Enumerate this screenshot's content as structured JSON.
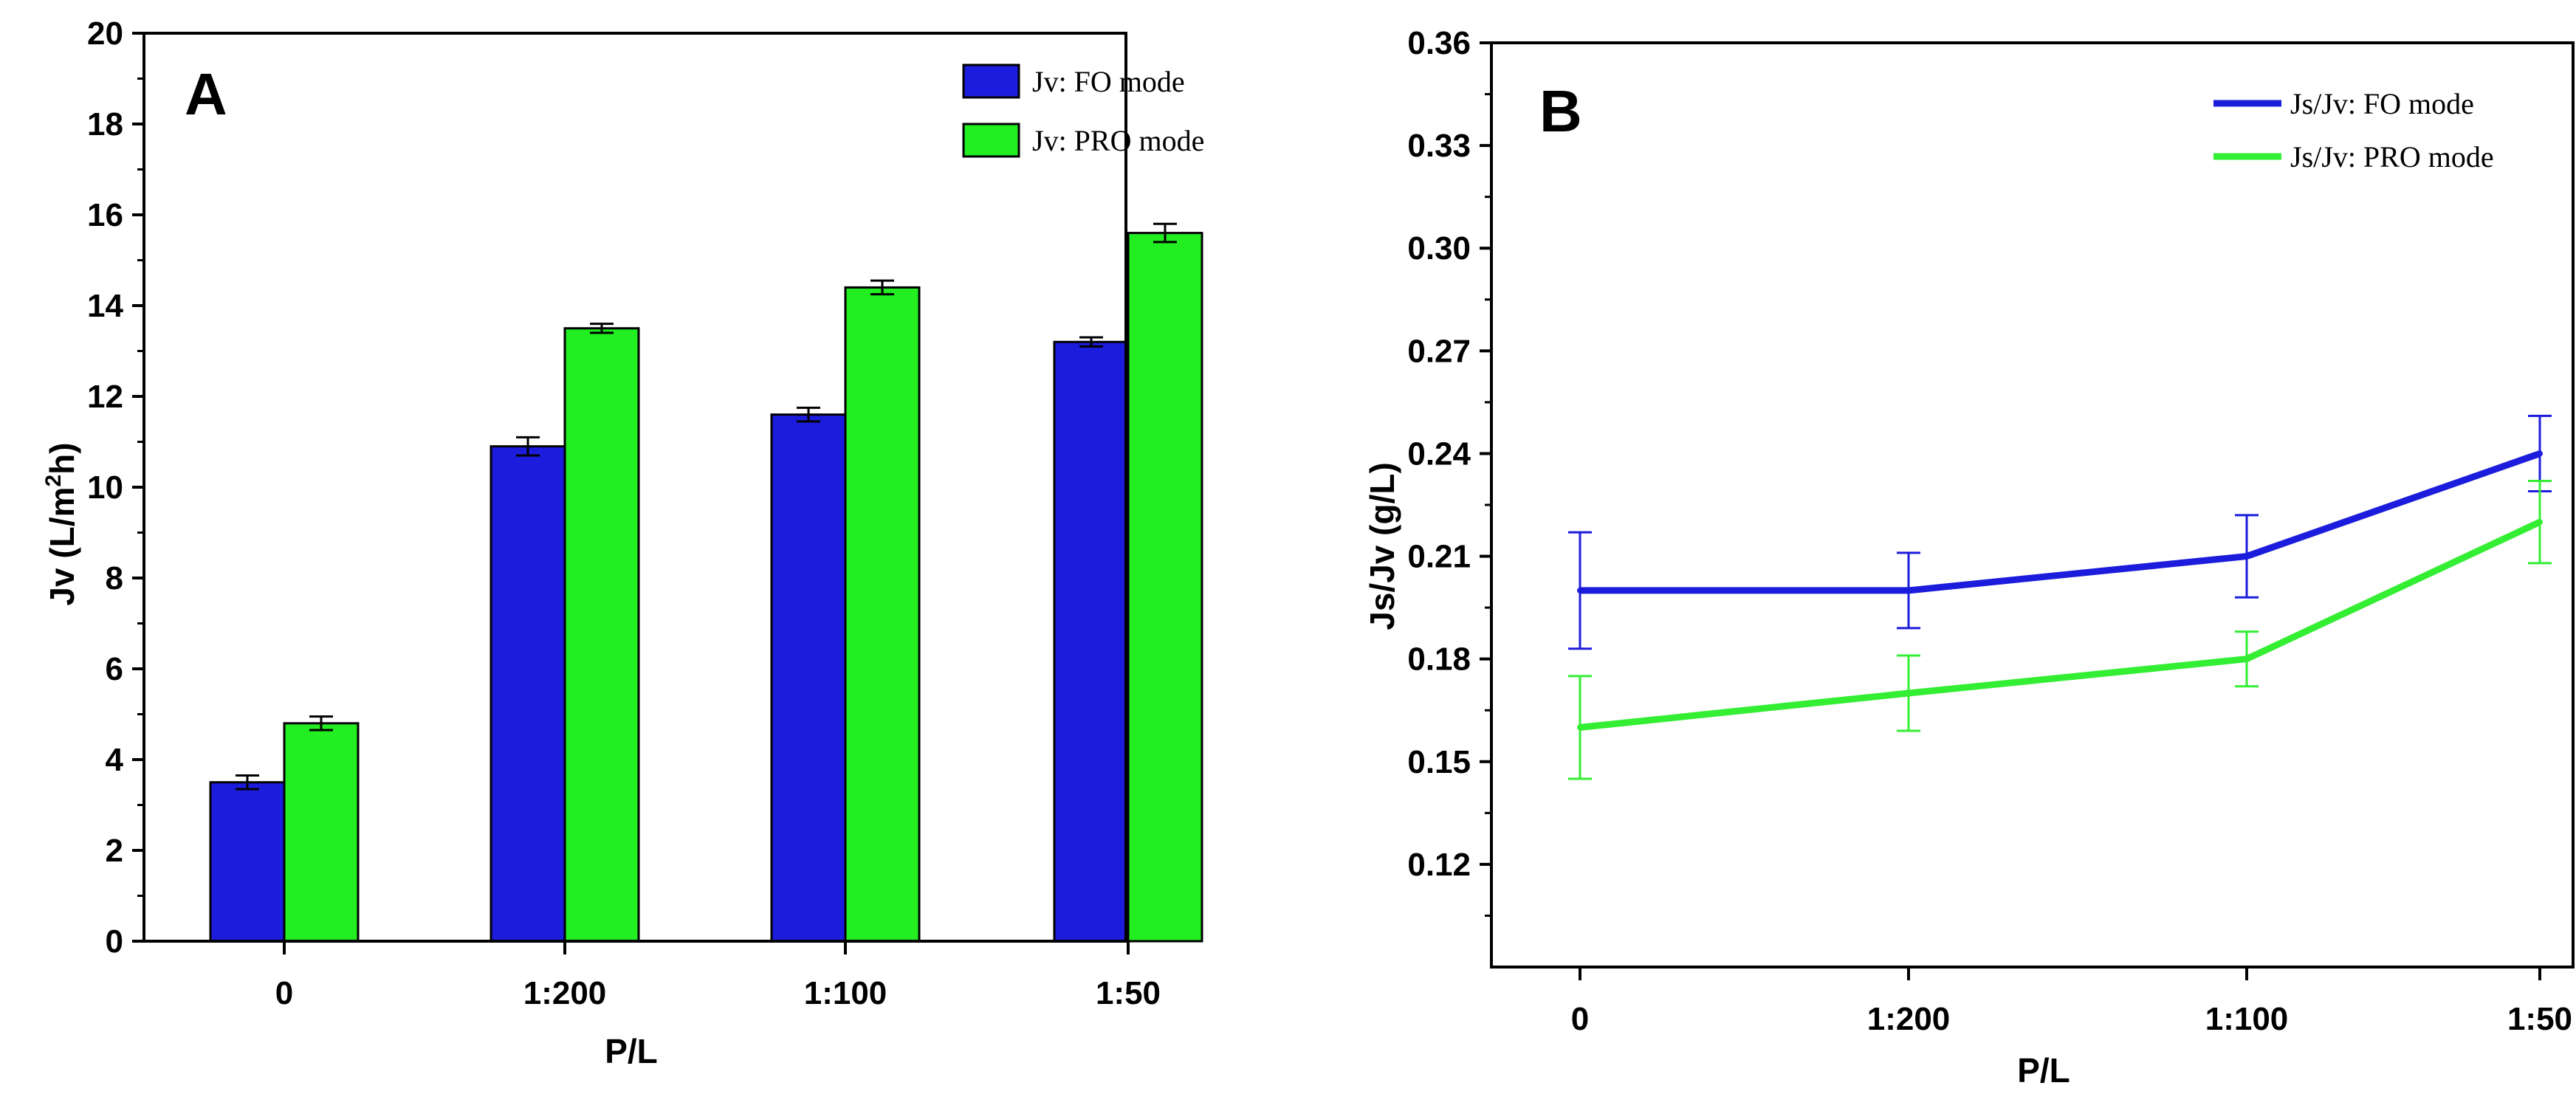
{
  "chart_data": [
    {
      "type": "bar",
      "panel_label": "A",
      "categories": [
        "0",
        "1:200",
        "1:100",
        "1:50"
      ],
      "xlabel": "P/L",
      "ylabel": "Jv (L/m²h)",
      "ylabel_base": "Jv (L/m",
      "ylabel_sup": "2",
      "ylabel_end": "h)",
      "ylim": [
        0,
        20
      ],
      "yticks": [
        0,
        2,
        4,
        6,
        8,
        10,
        12,
        14,
        16,
        18,
        20
      ],
      "legend_position": "top-right",
      "grid": false,
      "series": [
        {
          "name": "Jv: FO mode",
          "color": "#1c1cdc",
          "values": [
            3.5,
            10.9,
            11.6,
            13.2
          ],
          "errors": [
            0.15,
            0.2,
            0.15,
            0.1
          ]
        },
        {
          "name": "Jv: PRO mode",
          "color": "#22ee22",
          "values": [
            4.8,
            13.5,
            14.4,
            15.6
          ],
          "errors": [
            0.15,
            0.1,
            0.15,
            0.2
          ]
        }
      ]
    },
    {
      "type": "line",
      "panel_label": "B",
      "categories": [
        "0",
        "1:200",
        "1:100",
        "1:50"
      ],
      "xlabel": "P/L",
      "ylabel": "Js/Jv (g/L)",
      "ylim": [
        0.09,
        0.36
      ],
      "yticks": [
        "0.12",
        "0.15",
        "0.18",
        "0.21",
        "0.24",
        "0.27",
        "0.30",
        "0.33",
        "0.36"
      ],
      "legend_position": "top-right",
      "grid": false,
      "series": [
        {
          "name": "Js/Jv:  FO mode",
          "color": "#1c1cdc",
          "values": [
            0.2,
            0.2,
            0.21,
            0.24
          ],
          "errors": [
            0.017,
            0.011,
            0.012,
            0.011
          ]
        },
        {
          "name": "Js/Jv:  PRO mode",
          "color": "#33ee33",
          "values": [
            0.16,
            0.17,
            0.18,
            0.22
          ],
          "errors": [
            0.015,
            0.011,
            0.008,
            0.012
          ]
        }
      ]
    }
  ]
}
